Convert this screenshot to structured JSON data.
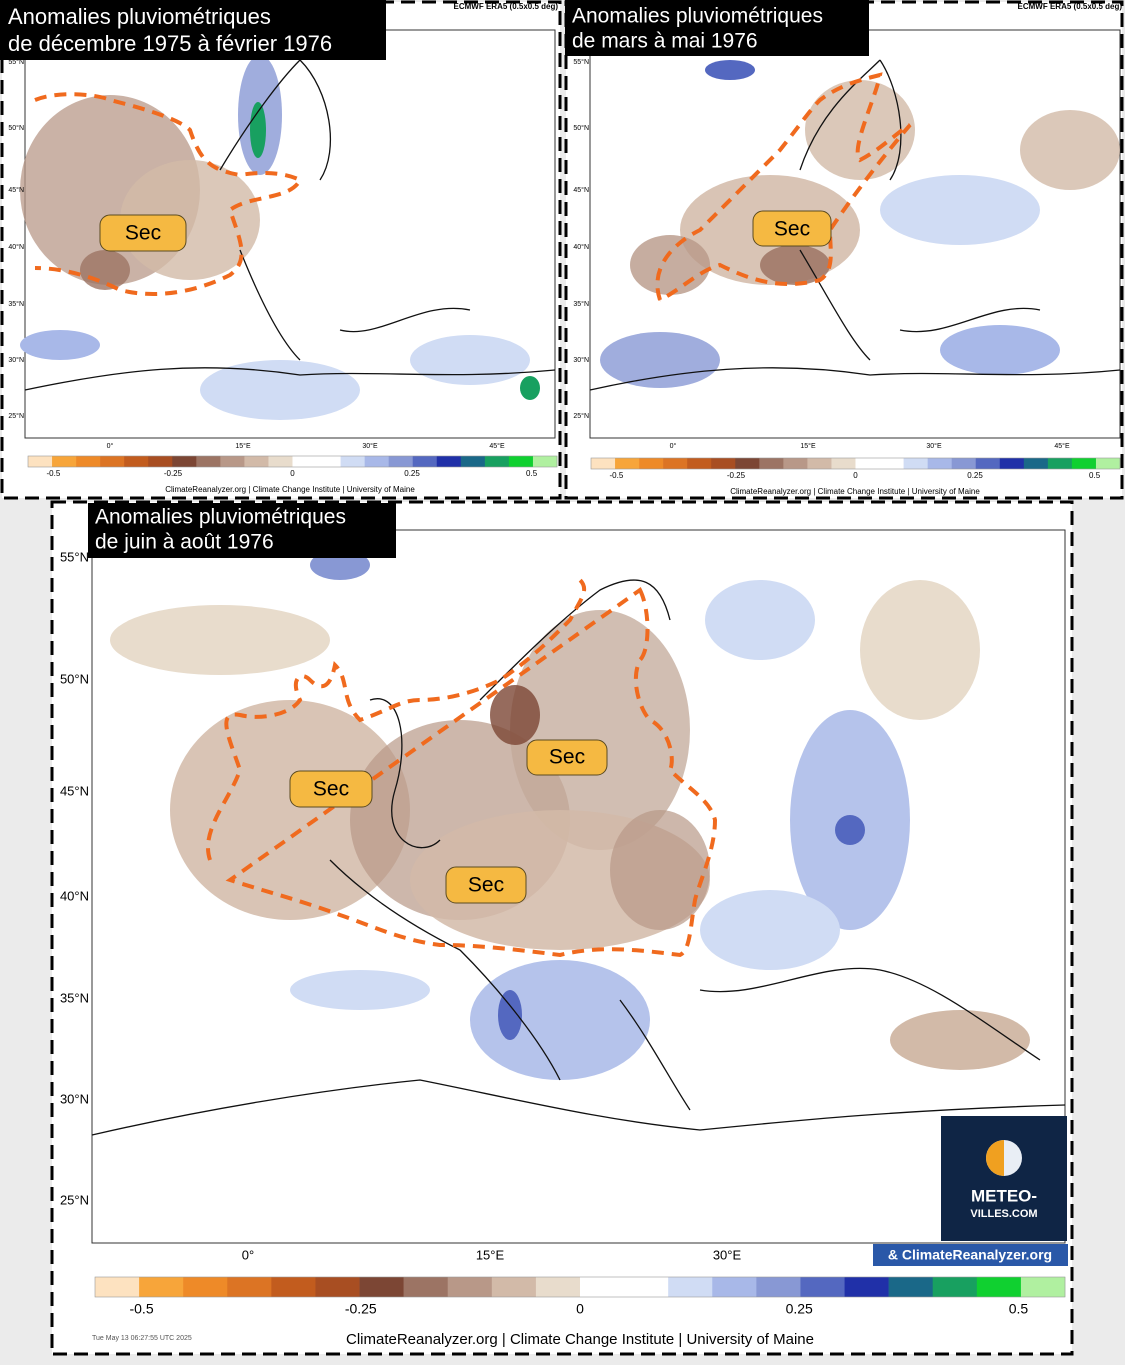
{
  "source_header": "ECMWF ERA5 (0.5x0.5 deg)",
  "panels": [
    {
      "title_lines": [
        "Anomalies pluviométriques",
        "de décembre 1975 à février 1976"
      ],
      "labels": [
        "Sec"
      ]
    },
    {
      "title_lines": [
        "Anomalies pluviométriques",
        "de mars à mai 1976"
      ],
      "labels": [
        "Sec"
      ]
    },
    {
      "title_lines": [
        "Anomalies pluviométriques",
        "de juin à août 1976"
      ],
      "labels": [
        "Sec",
        "Sec",
        "Sec"
      ]
    }
  ],
  "lat_ticks": [
    "55°N",
    "50°N",
    "45°N",
    "40°N",
    "35°N",
    "30°N",
    "25°N"
  ],
  "lon_ticks": [
    "0°",
    "15°E",
    "30°E",
    "45°E"
  ],
  "colorbar": {
    "ticks": [
      -0.5,
      -0.25,
      0,
      0.25,
      0.5
    ],
    "colors": [
      "#fde2c0",
      "#f7a53a",
      "#ee8a28",
      "#dc7424",
      "#c25c1e",
      "#a84e22",
      "#7c4634",
      "#9c7464",
      "#b89888",
      "#d2baa8",
      "#e8dccc",
      "#ffffff",
      "#ffffff",
      "#d0dcf4",
      "#a8b8e8",
      "#8898d4",
      "#5468c0",
      "#2030a8",
      "#1a6888",
      "#18a060",
      "#10d030",
      "#b0f0a0"
    ]
  },
  "credit": "ClimateReanalyzer.org | Climate Change Institute | University of Maine",
  "timestamp": "Tue May 13 06:27:55 UTC 2025",
  "logo": {
    "line1": "METEO-",
    "line2": "VILLES.COM"
  },
  "attribution": "& ClimateReanalyzer.org"
}
